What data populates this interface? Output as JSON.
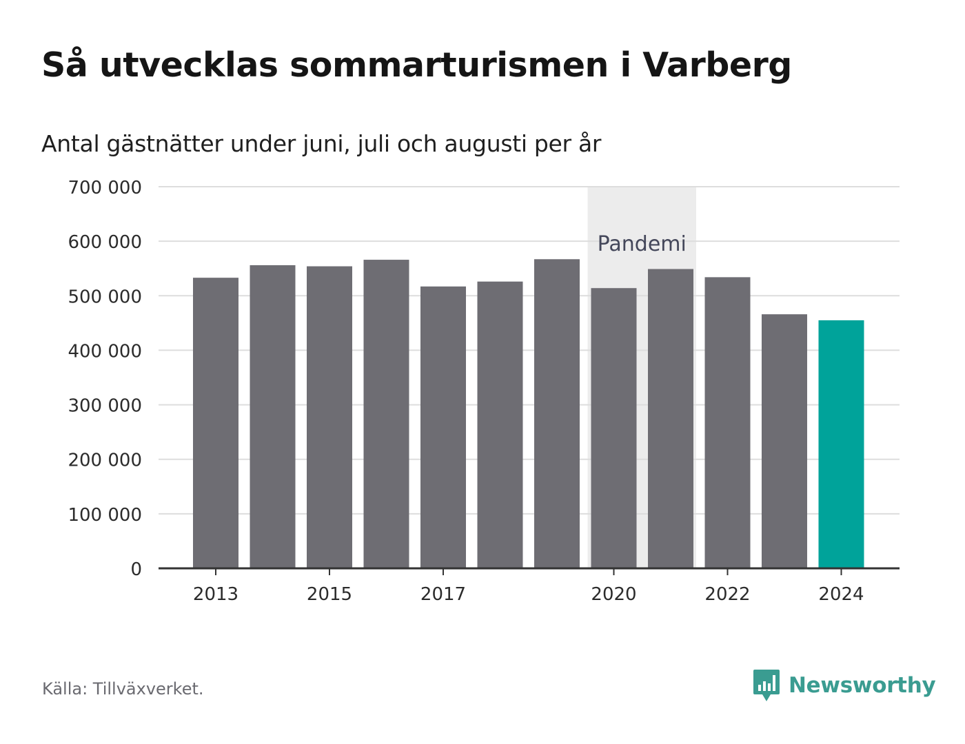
{
  "title": "Så utvecklas sommarturismen i Varberg",
  "subtitle": "Antal gästnätter under juni, juli och augusti per år",
  "source": "Källa: Tillväxverket.",
  "brand": {
    "name": "Newsworthy",
    "icon": "newsworthy-logo-icon"
  },
  "colors": {
    "bar": "#6e6d73",
    "highlight": "#00a39a",
    "band": "#ececec",
    "grid": "#dddddd",
    "axis": "#333333",
    "brand": "#3a9c91"
  },
  "chart_data": {
    "type": "bar",
    "categories": [
      "2013",
      "2014",
      "2015",
      "2016",
      "2017",
      "2018",
      "2019",
      "2020",
      "2021",
      "2022",
      "2023",
      "2024"
    ],
    "values": [
      533000,
      556000,
      554000,
      566000,
      517000,
      526000,
      567000,
      514000,
      549000,
      534000,
      466000,
      455000
    ],
    "highlight": "2024",
    "ylim": [
      0,
      700000
    ],
    "yticks": [
      0,
      100000,
      200000,
      300000,
      400000,
      500000,
      600000,
      700000
    ],
    "ytick_labels": [
      "0",
      "100 000",
      "200 000",
      "300 000",
      "400 000",
      "500 000",
      "600 000",
      "700 000"
    ],
    "xtick_labels": [
      "2013",
      "2015",
      "2017",
      "2020",
      "2022",
      "2024"
    ],
    "annotation": {
      "label": "Pandemi",
      "from": "2020",
      "to": "2021"
    },
    "grid": true,
    "xlabel": "",
    "ylabel": ""
  }
}
